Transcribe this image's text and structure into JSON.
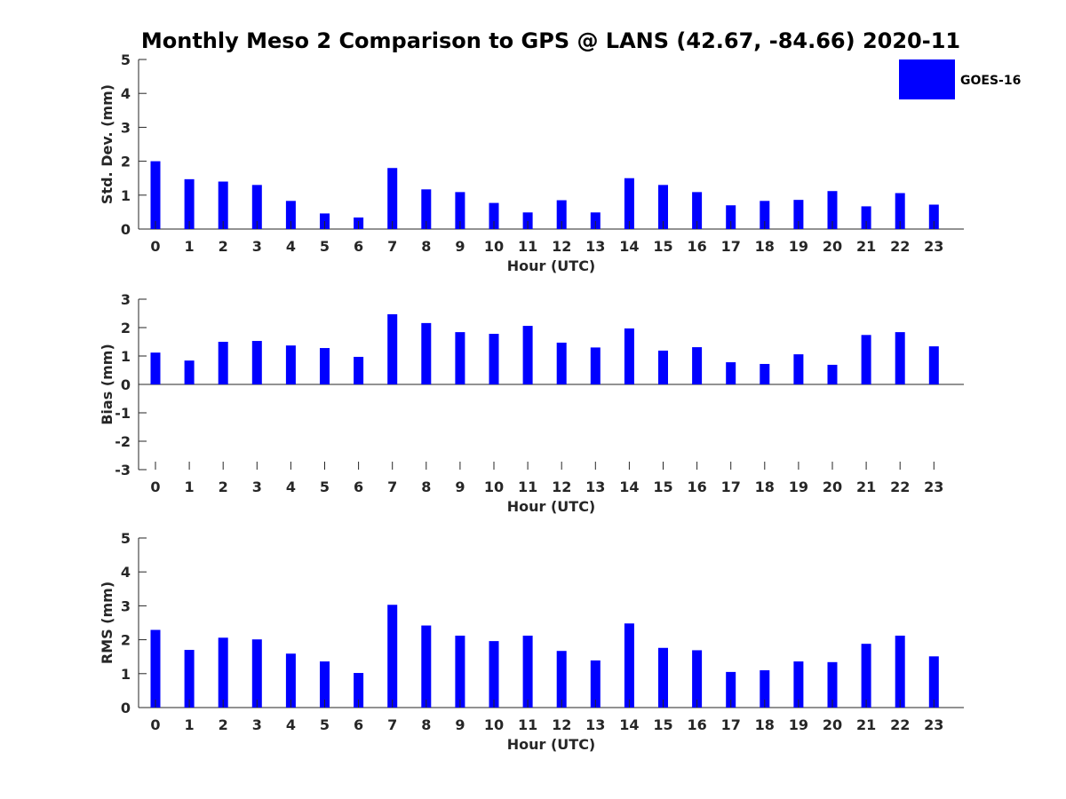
{
  "title": "Monthly Meso 2 Comparison to GPS @ LANS (42.67, -84.66) 2020-11",
  "legend": {
    "label": "GOES-16",
    "color": "#0000ff"
  },
  "chart_data": [
    {
      "type": "bar",
      "xlabel": "Hour (UTC)",
      "ylabel": "Std. Dev. (mm)",
      "ylim": [
        0,
        5
      ],
      "yticks": [
        "0",
        "1",
        "2",
        "3",
        "4",
        "5"
      ],
      "categories": [
        "0",
        "1",
        "2",
        "3",
        "4",
        "5",
        "6",
        "7",
        "8",
        "9",
        "10",
        "11",
        "12",
        "13",
        "14",
        "15",
        "16",
        "17",
        "18",
        "19",
        "20",
        "21",
        "22",
        "23"
      ],
      "series": [
        {
          "name": "GOES-16",
          "values": [
            2.0,
            1.47,
            1.4,
            1.3,
            0.83,
            0.46,
            0.34,
            1.8,
            1.17,
            1.09,
            0.77,
            0.49,
            0.85,
            0.49,
            1.5,
            1.3,
            1.09,
            0.7,
            0.83,
            0.86,
            1.12,
            0.67,
            1.06,
            0.72
          ]
        }
      ]
    },
    {
      "type": "bar",
      "xlabel": "Hour (UTC)",
      "ylabel": "Bias (mm)",
      "ylim": [
        -3,
        3
      ],
      "yticks": [
        "-3",
        "-2",
        "-1",
        "0",
        "1",
        "2",
        "3"
      ],
      "categories": [
        "0",
        "1",
        "2",
        "3",
        "4",
        "5",
        "6",
        "7",
        "8",
        "9",
        "10",
        "11",
        "12",
        "13",
        "14",
        "15",
        "16",
        "17",
        "18",
        "19",
        "20",
        "21",
        "22",
        "23"
      ],
      "series": [
        {
          "name": "GOES-16",
          "values": [
            1.12,
            0.84,
            1.5,
            1.53,
            1.37,
            1.28,
            0.97,
            2.47,
            2.16,
            1.84,
            1.78,
            2.06,
            1.47,
            1.3,
            1.97,
            1.19,
            1.31,
            0.78,
            0.72,
            1.06,
            0.69,
            1.74,
            1.84,
            1.34
          ]
        }
      ]
    },
    {
      "type": "bar",
      "xlabel": "Hour (UTC)",
      "ylabel": "RMS (mm)",
      "ylim": [
        0,
        5
      ],
      "yticks": [
        "0",
        "1",
        "2",
        "3",
        "4",
        "5"
      ],
      "categories": [
        "0",
        "1",
        "2",
        "3",
        "4",
        "5",
        "6",
        "7",
        "8",
        "9",
        "10",
        "11",
        "12",
        "13",
        "14",
        "15",
        "16",
        "17",
        "18",
        "19",
        "20",
        "21",
        "22",
        "23"
      ],
      "series": [
        {
          "name": "GOES-16",
          "values": [
            2.29,
            1.7,
            2.06,
            2.01,
            1.59,
            1.36,
            1.02,
            3.03,
            2.42,
            2.12,
            1.96,
            2.12,
            1.67,
            1.39,
            2.48,
            1.76,
            1.69,
            1.05,
            1.1,
            1.36,
            1.34,
            1.88,
            2.12,
            1.51
          ]
        }
      ]
    }
  ]
}
